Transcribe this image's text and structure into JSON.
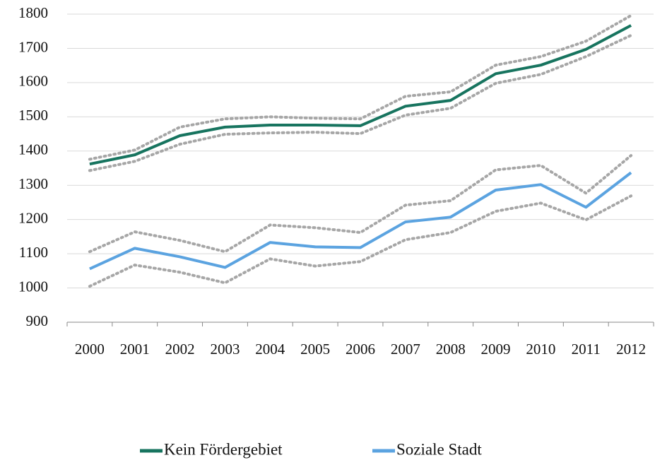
{
  "chart_data": {
    "type": "line",
    "categories": [
      "2000",
      "2001",
      "2002",
      "2003",
      "2004",
      "2005",
      "2006",
      "2007",
      "2008",
      "2009",
      "2010",
      "2011",
      "2012"
    ],
    "series": [
      {
        "name": "Kein Fördergebiet",
        "color": "#17745f",
        "values": [
          1362,
          1389,
          1445,
          1470,
          1476,
          1476,
          1474,
          1531,
          1548,
          1626,
          1651,
          1697,
          1767
        ],
        "upper": [
          1376,
          1403,
          1470,
          1494,
          1500,
          1496,
          1494,
          1560,
          1573,
          1651,
          1676,
          1721,
          1796
        ],
        "lower": [
          1343,
          1370,
          1420,
          1449,
          1453,
          1455,
          1451,
          1505,
          1525,
          1598,
          1624,
          1676,
          1738
        ]
      },
      {
        "name": "Soziale Stadt",
        "color": "#5ba3e0",
        "values": [
          1056,
          1116,
          1091,
          1060,
          1133,
          1120,
          1118,
          1193,
          1207,
          1286,
          1302,
          1236,
          1337
        ],
        "upper": [
          1106,
          1164,
          1139,
          1106,
          1184,
          1176,
          1162,
          1242,
          1255,
          1345,
          1358,
          1277,
          1387
        ],
        "lower": [
          1005,
          1067,
          1046,
          1015,
          1085,
          1064,
          1077,
          1141,
          1162,
          1224,
          1248,
          1199,
          1269
        ]
      }
    ],
    "band_color": "#a6a6a6",
    "ylim": [
      900,
      1800
    ],
    "yticks": [
      900,
      1000,
      1100,
      1200,
      1300,
      1400,
      1500,
      1600,
      1700,
      1800
    ],
    "grid": true,
    "legend": "bottom"
  }
}
